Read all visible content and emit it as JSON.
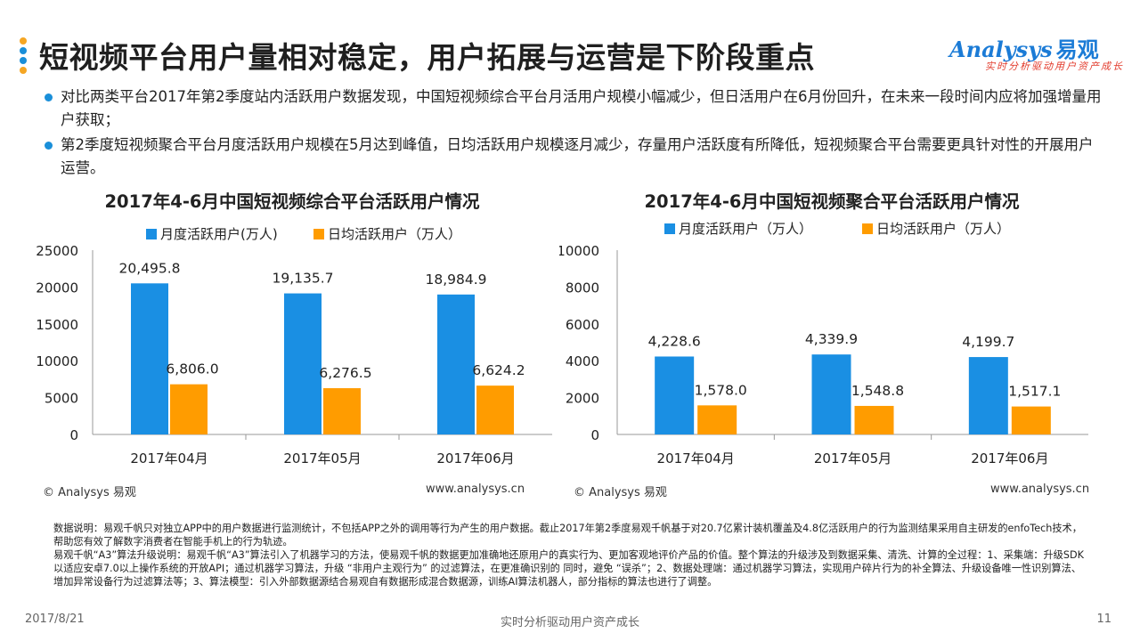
{
  "header": {
    "title": "短视频平台用户量相对稳定，用户拓展与运营是下阶段重点",
    "dot_colors": [
      "#f5a623",
      "#1a8fd9",
      "#1a8fd9",
      "#f5a623"
    ]
  },
  "logo": {
    "name": "Analysys",
    "name_cn": "易观",
    "slogan": "实时分析驱动用户资产成长"
  },
  "bullets": [
    "对比两类平台2017年第2季度站内活跃用户数据发现，中国短视频综合平台月活用户规模小幅减少，但日活用户在6月份回升，在未来一段时间内应将加强增量用户获取；",
    "第2季度短视频聚合平台月度活跃用户规模在5月达到峰值，日均活跃用户规模逐月减少，存量用户活跃度有所降低，短视频聚合平台需要更具针对性的开展用户运营。"
  ],
  "colors": {
    "monthly": "#1a8fe3",
    "daily": "#ff9c00",
    "axis": "#999999"
  },
  "chart_data": [
    {
      "type": "bar",
      "title": "2017年4-6月中国短视频综合平台活跃用户情况",
      "categories": [
        "2017年04月",
        "2017年05月",
        "2017年06月"
      ],
      "series": [
        {
          "name": "月度活跃用户(万人)",
          "values": [
            20495.8,
            19135.7,
            18984.9
          ],
          "labels": [
            "20,495.8",
            "19,135.7",
            "18,984.9"
          ]
        },
        {
          "name": "日均活跃用户（万人）",
          "values": [
            6806.0,
            6276.5,
            6624.2
          ],
          "labels": [
            "6,806.0",
            "6,276.5",
            "6,624.2"
          ]
        }
      ],
      "ylim": [
        0,
        25000
      ],
      "yticks": [
        0,
        5000,
        10000,
        15000,
        20000,
        25000
      ],
      "legend": "top",
      "grid": false
    },
    {
      "type": "bar",
      "title": "2017年4-6月中国短视频聚合平台活跃用户情况",
      "categories": [
        "2017年04月",
        "2017年05月",
        "2017年06月"
      ],
      "series": [
        {
          "name": "月度活跃用户（万人）",
          "values": [
            4228.6,
            4339.9,
            4199.7
          ],
          "labels": [
            "4,228.6",
            "4,339.9",
            "4,199.7"
          ]
        },
        {
          "name": "日均活跃用户（万人）",
          "values": [
            1578.0,
            1548.8,
            1517.1
          ],
          "labels": [
            "1,578.0",
            "1,548.8",
            "1,517.1"
          ]
        }
      ],
      "ylim": [
        0,
        10000
      ],
      "yticks": [
        0,
        2000,
        4000,
        6000,
        8000,
        10000
      ],
      "legend": "top",
      "grid": false
    }
  ],
  "chart_footer": {
    "copyright": "© Analysys 易观",
    "website": "www.analysys.cn"
  },
  "notes": [
    "数据说明：易观千帆只对独立APP中的用户数据进行监测统计，不包括APP之外的调用等行为产生的用户数据。截止2017年第2季度易观千帆基于对20.7亿累计装机覆盖及4.8亿活跃用户的行为监测结果采用自主研发的enfoTech技术，帮助您有效了解数字消费者在智能手机上的行为轨迹。",
    "易观千帆“A3”算法升级说明：易观千帆“A3”算法引入了机器学习的方法，使易观千帆的数据更加准确地还原用户的真实行为、更加客观地评价产品的价值。整个算法的升级涉及到数据采集、清洗、计算的全过程：1、采集端：升级SDK以适应安卓7.0以上操作系统的开放API；通过机器学习算法，升级 “非用户主观行为” 的过滤算法，在更准确识别的 同时，避免 “误杀”；2、数据处理端：通过机器学习算法，实现用户碎片行为的补全算法、升级设备唯一性识别算法、增加异常设备行为过滤算法等；3、算法模型：引入外部数据源结合易观自有数据形成混合数据源，训练AI算法机器人，部分指标的算法也进行了调整。"
  ],
  "bottom": {
    "date": "2017/8/21",
    "slogan": "实时分析驱动用户资产成长",
    "page": "11"
  }
}
